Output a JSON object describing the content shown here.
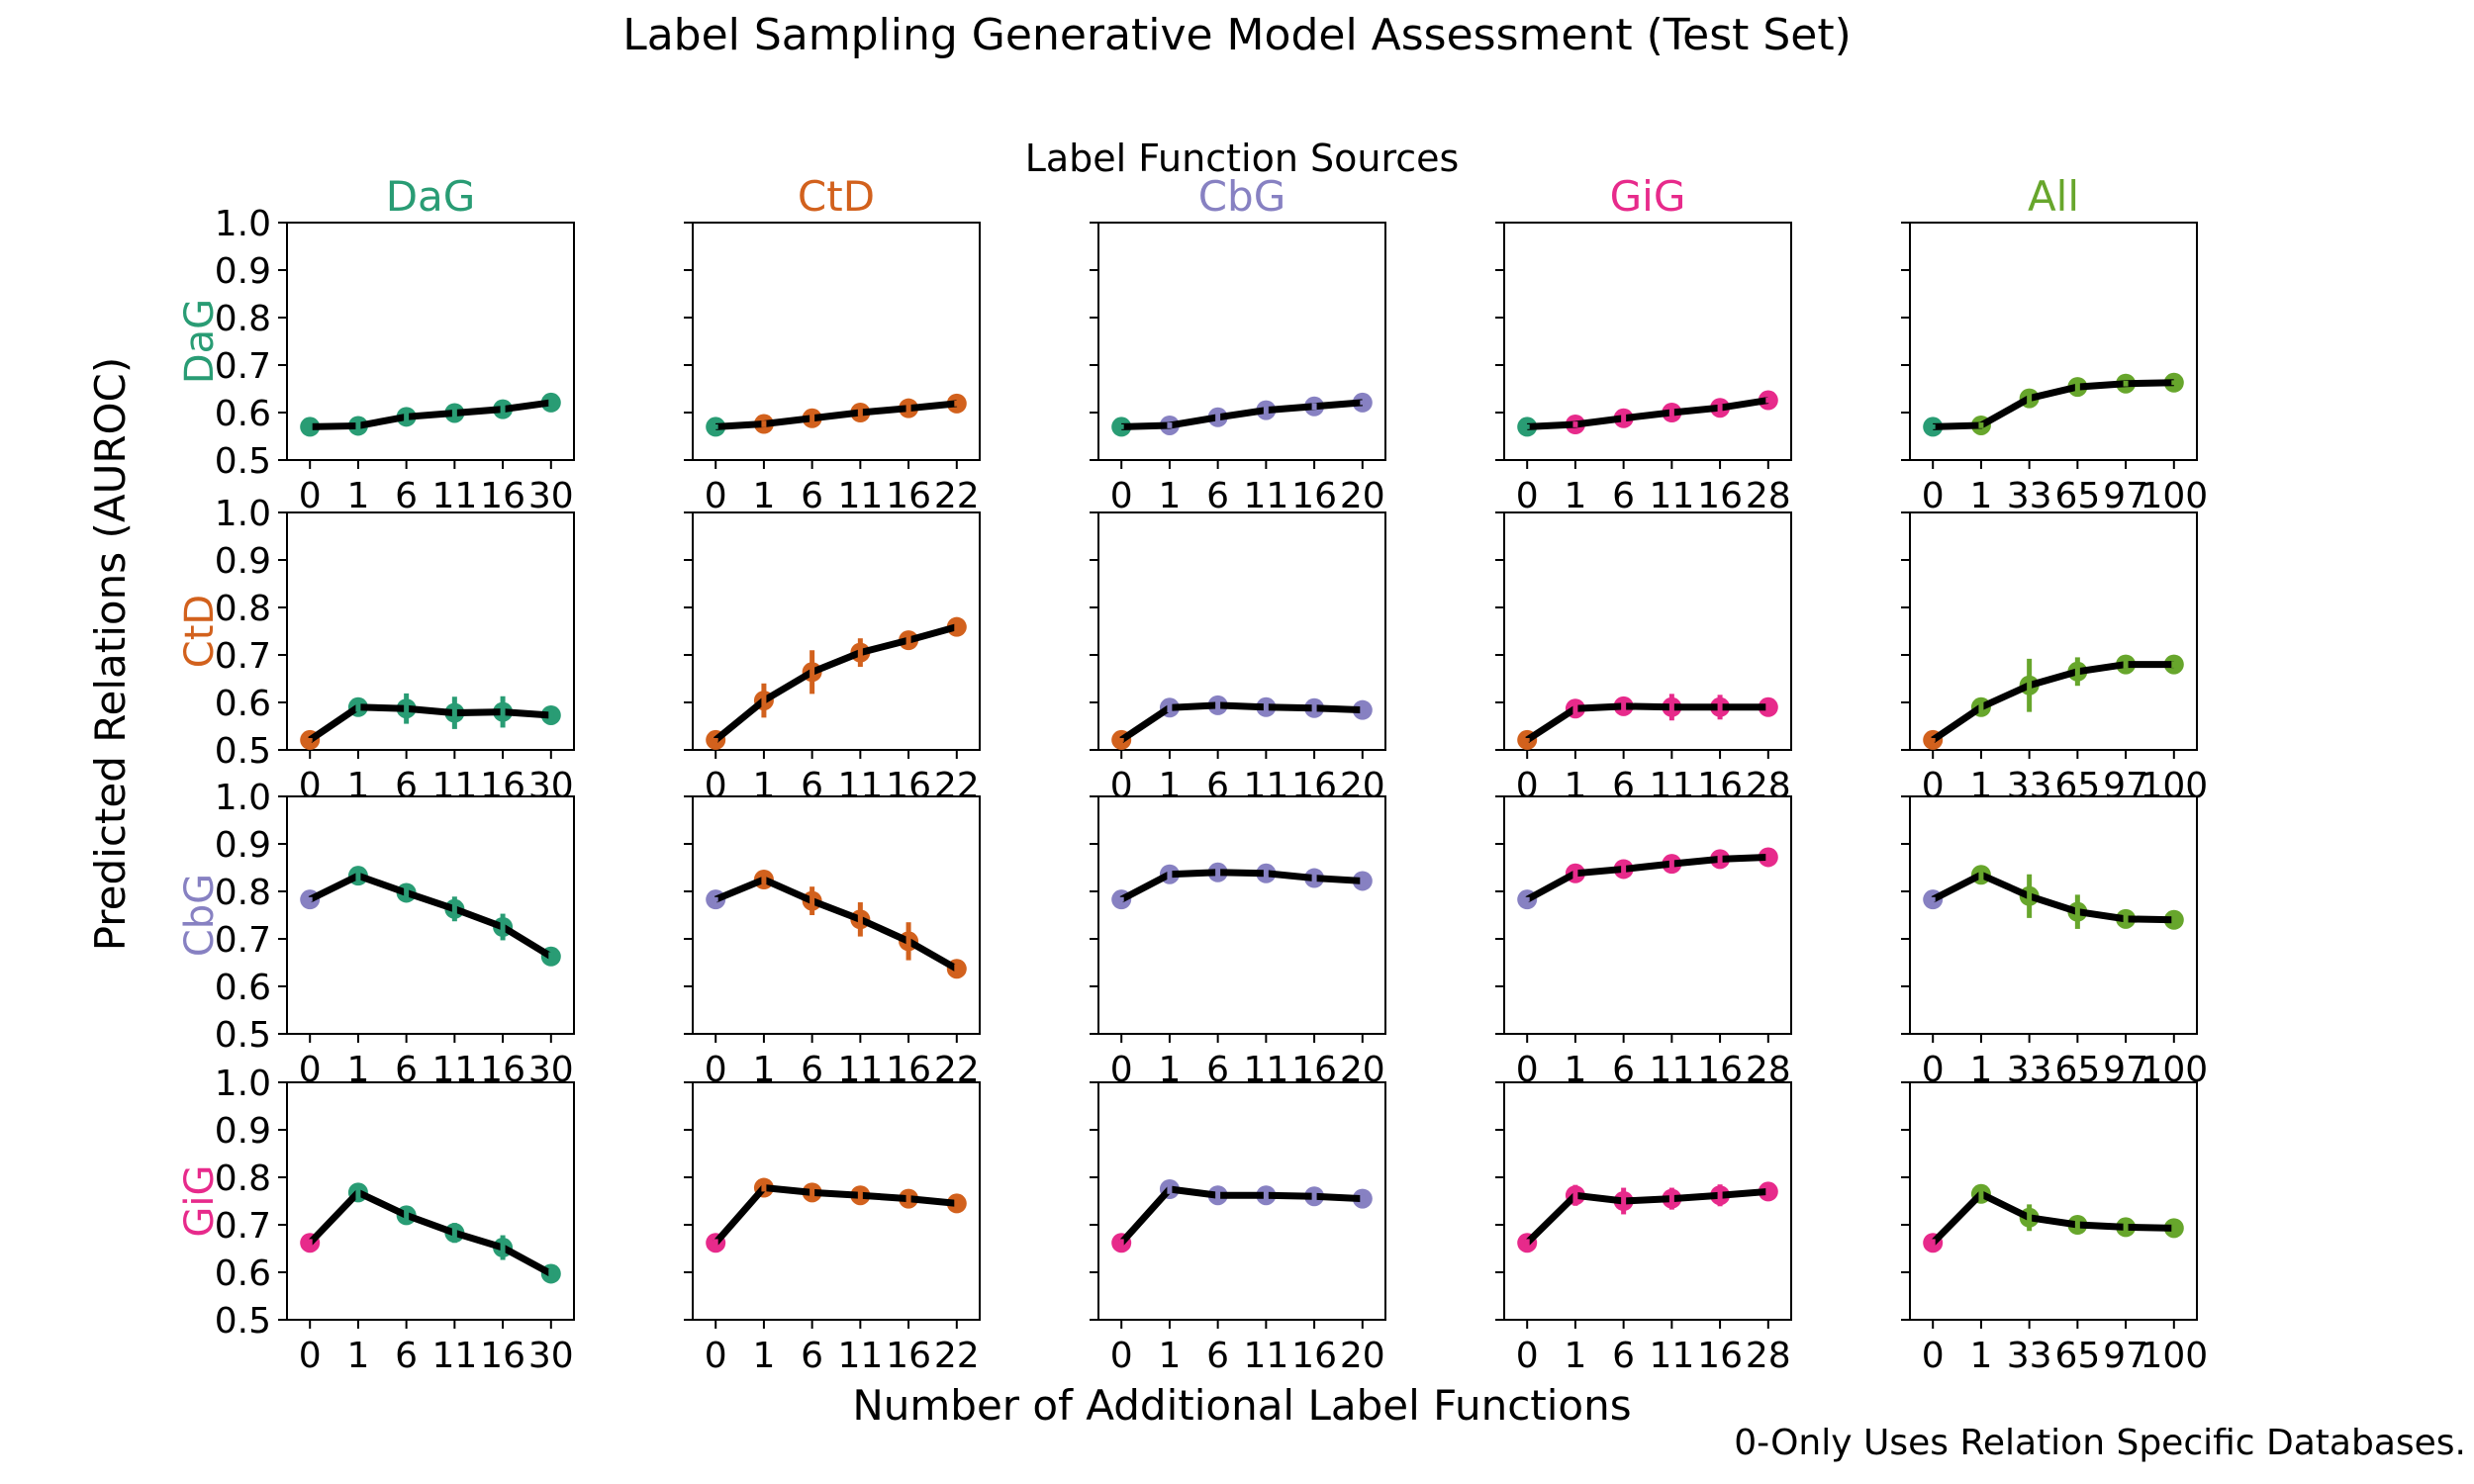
{
  "title": "Label Sampling Generative Model Assessment (Test Set)",
  "sources_title": "Label Function Sources",
  "xlabel": "Number of Additional Label Functions",
  "ylabel": "Predicted Relations (AUROC)",
  "footnote": "0-Only Uses Relation Specific Databases.",
  "chart_data": {
    "type": "line",
    "layout_note": "4x5 grid of subplots; rows = predicted relation type, columns = label function source; point at x=0 is colored by row, remaining points by column; black connecting line with colored error bars",
    "ylim": [
      0.5,
      1.0
    ],
    "yticks": [
      "1.0",
      "0.9",
      "0.8",
      "0.7",
      "0.6",
      "0.5"
    ],
    "grid": false,
    "columns": [
      {
        "label": "DaG",
        "color": "#299c74",
        "x": [
          "0",
          "1",
          "6",
          "11",
          "16",
          "30"
        ]
      },
      {
        "label": "CtD",
        "color": "#d2611d",
        "x": [
          "0",
          "1",
          "6",
          "11",
          "16",
          "22"
        ]
      },
      {
        "label": "CbG",
        "color": "#8781c2",
        "x": [
          "0",
          "1",
          "6",
          "11",
          "16",
          "20"
        ]
      },
      {
        "label": "GiG",
        "color": "#e72a8b",
        "x": [
          "0",
          "1",
          "6",
          "11",
          "16",
          "28"
        ]
      },
      {
        "label": "All",
        "color": "#67a62c",
        "x": [
          "0",
          "1",
          "33",
          "65",
          "97",
          "100"
        ]
      }
    ],
    "rows": [
      {
        "label": "DaG",
        "color": "#299c74"
      },
      {
        "label": "CtD",
        "color": "#d2611d"
      },
      {
        "label": "CbG",
        "color": "#8781c2"
      },
      {
        "label": "GiG",
        "color": "#e72a8b"
      }
    ],
    "cells": [
      {
        "row": "DaG",
        "col": "DaG",
        "auroc": [
          0.57,
          0.572,
          0.591,
          0.599,
          0.607,
          0.621
        ],
        "err": [
          0.008,
          0.01,
          0.016,
          0.018,
          0.013,
          0.008
        ]
      },
      {
        "row": "DaG",
        "col": "CtD",
        "auroc": [
          0.57,
          0.576,
          0.588,
          0.6,
          0.609,
          0.619
        ],
        "err": [
          0.005,
          0.007,
          0.01,
          0.008,
          0.008,
          0.006
        ]
      },
      {
        "row": "DaG",
        "col": "CbG",
        "auroc": [
          0.57,
          0.573,
          0.59,
          0.605,
          0.613,
          0.621
        ],
        "err": [
          0.005,
          0.006,
          0.009,
          0.008,
          0.007,
          0.005
        ]
      },
      {
        "row": "DaG",
        "col": "GiG",
        "auroc": [
          0.57,
          0.575,
          0.588,
          0.6,
          0.61,
          0.626
        ],
        "err": [
          0.005,
          0.006,
          0.009,
          0.008,
          0.008,
          0.006
        ]
      },
      {
        "row": "DaG",
        "col": "All",
        "auroc": [
          0.57,
          0.573,
          0.63,
          0.654,
          0.661,
          0.663
        ],
        "err": [
          0.005,
          0.006,
          0.02,
          0.013,
          0.006,
          0.005
        ]
      },
      {
        "row": "CtD",
        "col": "DaG",
        "auroc": [
          0.521,
          0.59,
          0.587,
          0.578,
          0.58,
          0.573
        ],
        "err": [
          0.004,
          0.01,
          0.032,
          0.034,
          0.033,
          0.01
        ]
      },
      {
        "row": "CtD",
        "col": "CtD",
        "auroc": [
          0.521,
          0.604,
          0.664,
          0.705,
          0.731,
          0.759
        ],
        "err": [
          0.004,
          0.036,
          0.046,
          0.03,
          0.016,
          0.01
        ]
      },
      {
        "row": "CtD",
        "col": "CbG",
        "auroc": [
          0.521,
          0.589,
          0.594,
          0.59,
          0.588,
          0.584
        ],
        "err": [
          0.004,
          0.01,
          0.014,
          0.012,
          0.012,
          0.01
        ]
      },
      {
        "row": "CtD",
        "col": "GiG",
        "auroc": [
          0.521,
          0.587,
          0.592,
          0.59,
          0.59,
          0.59
        ],
        "err": [
          0.004,
          0.012,
          0.018,
          0.028,
          0.026,
          0.008
        ]
      },
      {
        "row": "CtD",
        "col": "All",
        "auroc": [
          0.521,
          0.59,
          0.636,
          0.665,
          0.68,
          0.68
        ],
        "err": [
          0.004,
          0.02,
          0.056,
          0.03,
          0.008,
          0.007
        ]
      },
      {
        "row": "CbG",
        "col": "DaG",
        "auroc": [
          0.783,
          0.833,
          0.797,
          0.763,
          0.725,
          0.663
        ],
        "err": [
          0.005,
          0.01,
          0.016,
          0.026,
          0.028,
          0.009
        ]
      },
      {
        "row": "CbG",
        "col": "CtD",
        "auroc": [
          0.783,
          0.825,
          0.78,
          0.741,
          0.695,
          0.637
        ],
        "err": [
          0.005,
          0.01,
          0.03,
          0.036,
          0.04,
          0.01
        ]
      },
      {
        "row": "CbG",
        "col": "CbG",
        "auroc": [
          0.783,
          0.836,
          0.84,
          0.838,
          0.828,
          0.822
        ],
        "err": [
          0.005,
          0.012,
          0.02,
          0.016,
          0.012,
          0.008
        ]
      },
      {
        "row": "CbG",
        "col": "GiG",
        "auroc": [
          0.783,
          0.838,
          0.847,
          0.858,
          0.868,
          0.872
        ],
        "err": [
          0.005,
          0.013,
          0.02,
          0.015,
          0.01,
          0.008
        ]
      },
      {
        "row": "CbG",
        "col": "All",
        "auroc": [
          0.783,
          0.835,
          0.79,
          0.757,
          0.742,
          0.74
        ],
        "err": [
          0.005,
          0.015,
          0.046,
          0.036,
          0.01,
          0.008
        ]
      },
      {
        "row": "GiG",
        "col": "DaG",
        "auroc": [
          0.662,
          0.768,
          0.72,
          0.683,
          0.652,
          0.597
        ],
        "err": [
          0.008,
          0.016,
          0.018,
          0.021,
          0.026,
          0.01
        ]
      },
      {
        "row": "GiG",
        "col": "CtD",
        "auroc": [
          0.662,
          0.778,
          0.768,
          0.762,
          0.755,
          0.745
        ],
        "err": [
          0.008,
          0.008,
          0.01,
          0.01,
          0.011,
          0.01
        ]
      },
      {
        "row": "GiG",
        "col": "CbG",
        "auroc": [
          0.662,
          0.775,
          0.762,
          0.762,
          0.76,
          0.755
        ],
        "err": [
          0.008,
          0.01,
          0.013,
          0.01,
          0.01,
          0.008
        ]
      },
      {
        "row": "GiG",
        "col": "GiG",
        "auroc": [
          0.662,
          0.762,
          0.75,
          0.755,
          0.762,
          0.77
        ],
        "err": [
          0.008,
          0.022,
          0.028,
          0.023,
          0.023,
          0.012
        ]
      },
      {
        "row": "GiG",
        "col": "All",
        "auroc": [
          0.662,
          0.765,
          0.715,
          0.7,
          0.695,
          0.693
        ],
        "err": [
          0.008,
          0.018,
          0.028,
          0.016,
          0.01,
          0.008
        ]
      }
    ]
  }
}
